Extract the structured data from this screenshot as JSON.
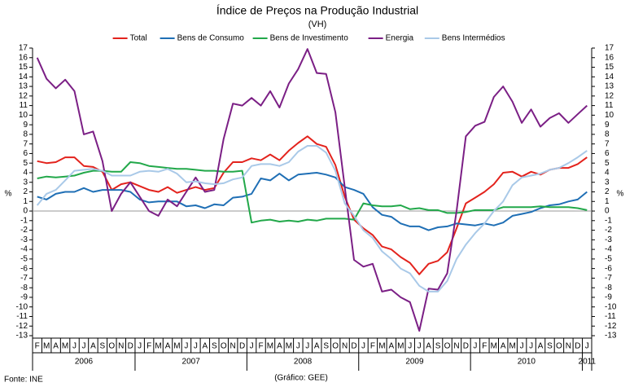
{
  "chart_data": {
    "type": "line",
    "title": "Índice de Preços na Produção Industrial",
    "subtitle": "(VH)",
    "ylabel": "%",
    "y2label": "%",
    "source": "Fonte: INE",
    "credit": "(Gráfico: GEE)",
    "legend": "top",
    "categories": [
      "F",
      "M",
      "A",
      "M",
      "J",
      "J",
      "A",
      "S",
      "O",
      "N",
      "D",
      "J",
      "F",
      "M",
      "A",
      "M",
      "J",
      "J",
      "A",
      "S",
      "O",
      "N",
      "D",
      "J",
      "F",
      "M",
      "A",
      "M",
      "J",
      "J",
      "A",
      "S",
      "O",
      "N",
      "D",
      "J",
      "F",
      "M",
      "A",
      "M",
      "J",
      "J",
      "A",
      "S",
      "O",
      "N",
      "D",
      "J",
      "F",
      "M",
      "A",
      "M",
      "J",
      "J",
      "A",
      "S",
      "O",
      "N",
      "D",
      "J"
    ],
    "year_groups": [
      {
        "label": "2006",
        "months": 11
      },
      {
        "label": "2007",
        "months": 12
      },
      {
        "label": "2008",
        "months": 12
      },
      {
        "label": "2009",
        "months": 12
      },
      {
        "label": "2010",
        "months": 12
      },
      {
        "label": "2011",
        "months": 1
      }
    ],
    "ylim": [
      -13,
      17
    ],
    "yticks": [
      -13,
      -12,
      -11,
      -10,
      -9,
      -8,
      -7,
      -6,
      -5,
      -4,
      -3,
      -2,
      -1,
      0,
      1,
      2,
      3,
      4,
      5,
      6,
      7,
      8,
      9,
      10,
      11,
      12,
      13,
      14,
      15,
      16,
      17
    ],
    "y2lim": [
      -13,
      17
    ],
    "y2ticks": [
      -13,
      -12,
      -11,
      -10,
      -9,
      -8,
      -7,
      -6,
      -5,
      -4,
      -3,
      -2,
      -1,
      0,
      1,
      2,
      3,
      4,
      5,
      6,
      7,
      8,
      9,
      10,
      11,
      12,
      13,
      14,
      15,
      16,
      17
    ],
    "series": [
      {
        "name": "Total",
        "color": "#e3231d",
        "values": [
          5.2,
          5,
          5.1,
          5.6,
          5.6,
          4.7,
          4.6,
          4.1,
          2.2,
          2.8,
          3,
          2.6,
          2.2,
          2,
          2.5,
          1.9,
          2.2,
          2.5,
          2.2,
          2.4,
          4,
          5.1,
          5.1,
          5.5,
          5.3,
          5.9,
          5.3,
          6.3,
          7.1,
          7.8,
          7,
          6.7,
          4.8,
          1.5,
          -0.9,
          -1.8,
          -2.5,
          -3.7,
          -4,
          -4.8,
          -5.4,
          -6.6,
          -5.5,
          -5.2,
          -4.3,
          -1.8,
          0.8,
          1.4,
          2,
          2.8,
          4,
          4.1,
          3.6,
          4.1,
          3.8,
          4.3,
          4.5,
          4.5,
          4.9,
          5.6
        ]
      },
      {
        "name": "Bens de Consumo",
        "color": "#1f6fb5",
        "values": [
          1.5,
          1.2,
          1.8,
          2,
          2,
          2.4,
          2,
          2.2,
          2.2,
          2.2,
          2,
          1.2,
          0.9,
          1,
          1,
          1,
          0.5,
          0.6,
          0.3,
          0.7,
          0.6,
          1.4,
          1.5,
          1.8,
          3.4,
          3.2,
          3.9,
          3.2,
          3.8,
          3.9,
          4,
          3.8,
          3.5,
          2.5,
          2.2,
          1.8,
          0.4,
          -0.4,
          -0.6,
          -1.3,
          -1.6,
          -1.6,
          -2,
          -1.7,
          -1.6,
          -1.3,
          -1.4,
          -1.5,
          -1.3,
          -1.5,
          -1.2,
          -0.5,
          -0.3,
          -0.1,
          0.3,
          0.6,
          0.7,
          1,
          1.2,
          2
        ]
      },
      {
        "name": "Bens de Investimento",
        "color": "#22a84a",
        "values": [
          3.4,
          3.6,
          3.5,
          3.6,
          3.7,
          4,
          4.2,
          4.2,
          4.1,
          4.1,
          5.1,
          5,
          4.7,
          4.6,
          4.5,
          4.4,
          4.4,
          4.3,
          4.2,
          4.2,
          4.1,
          4.1,
          4.2,
          -1.2,
          -1,
          -0.9,
          -1.1,
          -1,
          -1.1,
          -0.9,
          -1,
          -0.8,
          -0.8,
          -0.8,
          -0.9,
          0.8,
          0.6,
          0.5,
          0.5,
          0.6,
          0.2,
          0.3,
          0.1,
          0.1,
          -0.2,
          -0.2,
          -0.1,
          0.1,
          0.1,
          0.1,
          0.4,
          0.4,
          0.4,
          0.4,
          0.5,
          0.4,
          0.4,
          0.4,
          0.3,
          0.1
        ]
      },
      {
        "name": "Energia",
        "color": "#7b1f85",
        "values": [
          16,
          13.8,
          12.8,
          13.7,
          12.5,
          8,
          8.3,
          5.2,
          0,
          1.8,
          3,
          1.5,
          0,
          -0.5,
          1.2,
          0.5,
          2,
          3.5,
          2,
          2.2,
          7.5,
          11.2,
          11,
          11.8,
          11,
          12.5,
          10.8,
          13.3,
          14.8,
          16.9,
          14.4,
          14.3,
          10.3,
          2.5,
          -5.1,
          -5.8,
          -5.5,
          -8.4,
          -8.2,
          -9,
          -9.5,
          -12.5,
          -8.1,
          -8.2,
          -6.5,
          0,
          7.8,
          8.9,
          9.3,
          11.9,
          13,
          11.4,
          9.2,
          10.6,
          8.8,
          9.7,
          10.2,
          9.2,
          10.1,
          11
        ]
      },
      {
        "name": "Bens Intermédios",
        "color": "#a9c9e8",
        "values": [
          0.6,
          1.8,
          2.2,
          3.2,
          4.2,
          4.3,
          4.4,
          4.2,
          3.7,
          3.7,
          3.7,
          4.1,
          4.2,
          4.1,
          4.4,
          3.9,
          3,
          3.1,
          2.9,
          2.8,
          2.9,
          3.3,
          3.5,
          4.7,
          4.9,
          4.9,
          4.7,
          5.1,
          6.2,
          6.8,
          6.8,
          6.1,
          4.2,
          0.8,
          -0.5,
          -2,
          -2.8,
          -4.2,
          -5,
          -6,
          -6.5,
          -7.8,
          -8.4,
          -8.4,
          -7.3,
          -5,
          -3.5,
          -2.3,
          -1.3,
          0,
          1,
          2.7,
          3.5,
          3.7,
          3.9,
          4.3,
          4.5,
          5,
          5.6,
          6.3
        ]
      }
    ]
  }
}
